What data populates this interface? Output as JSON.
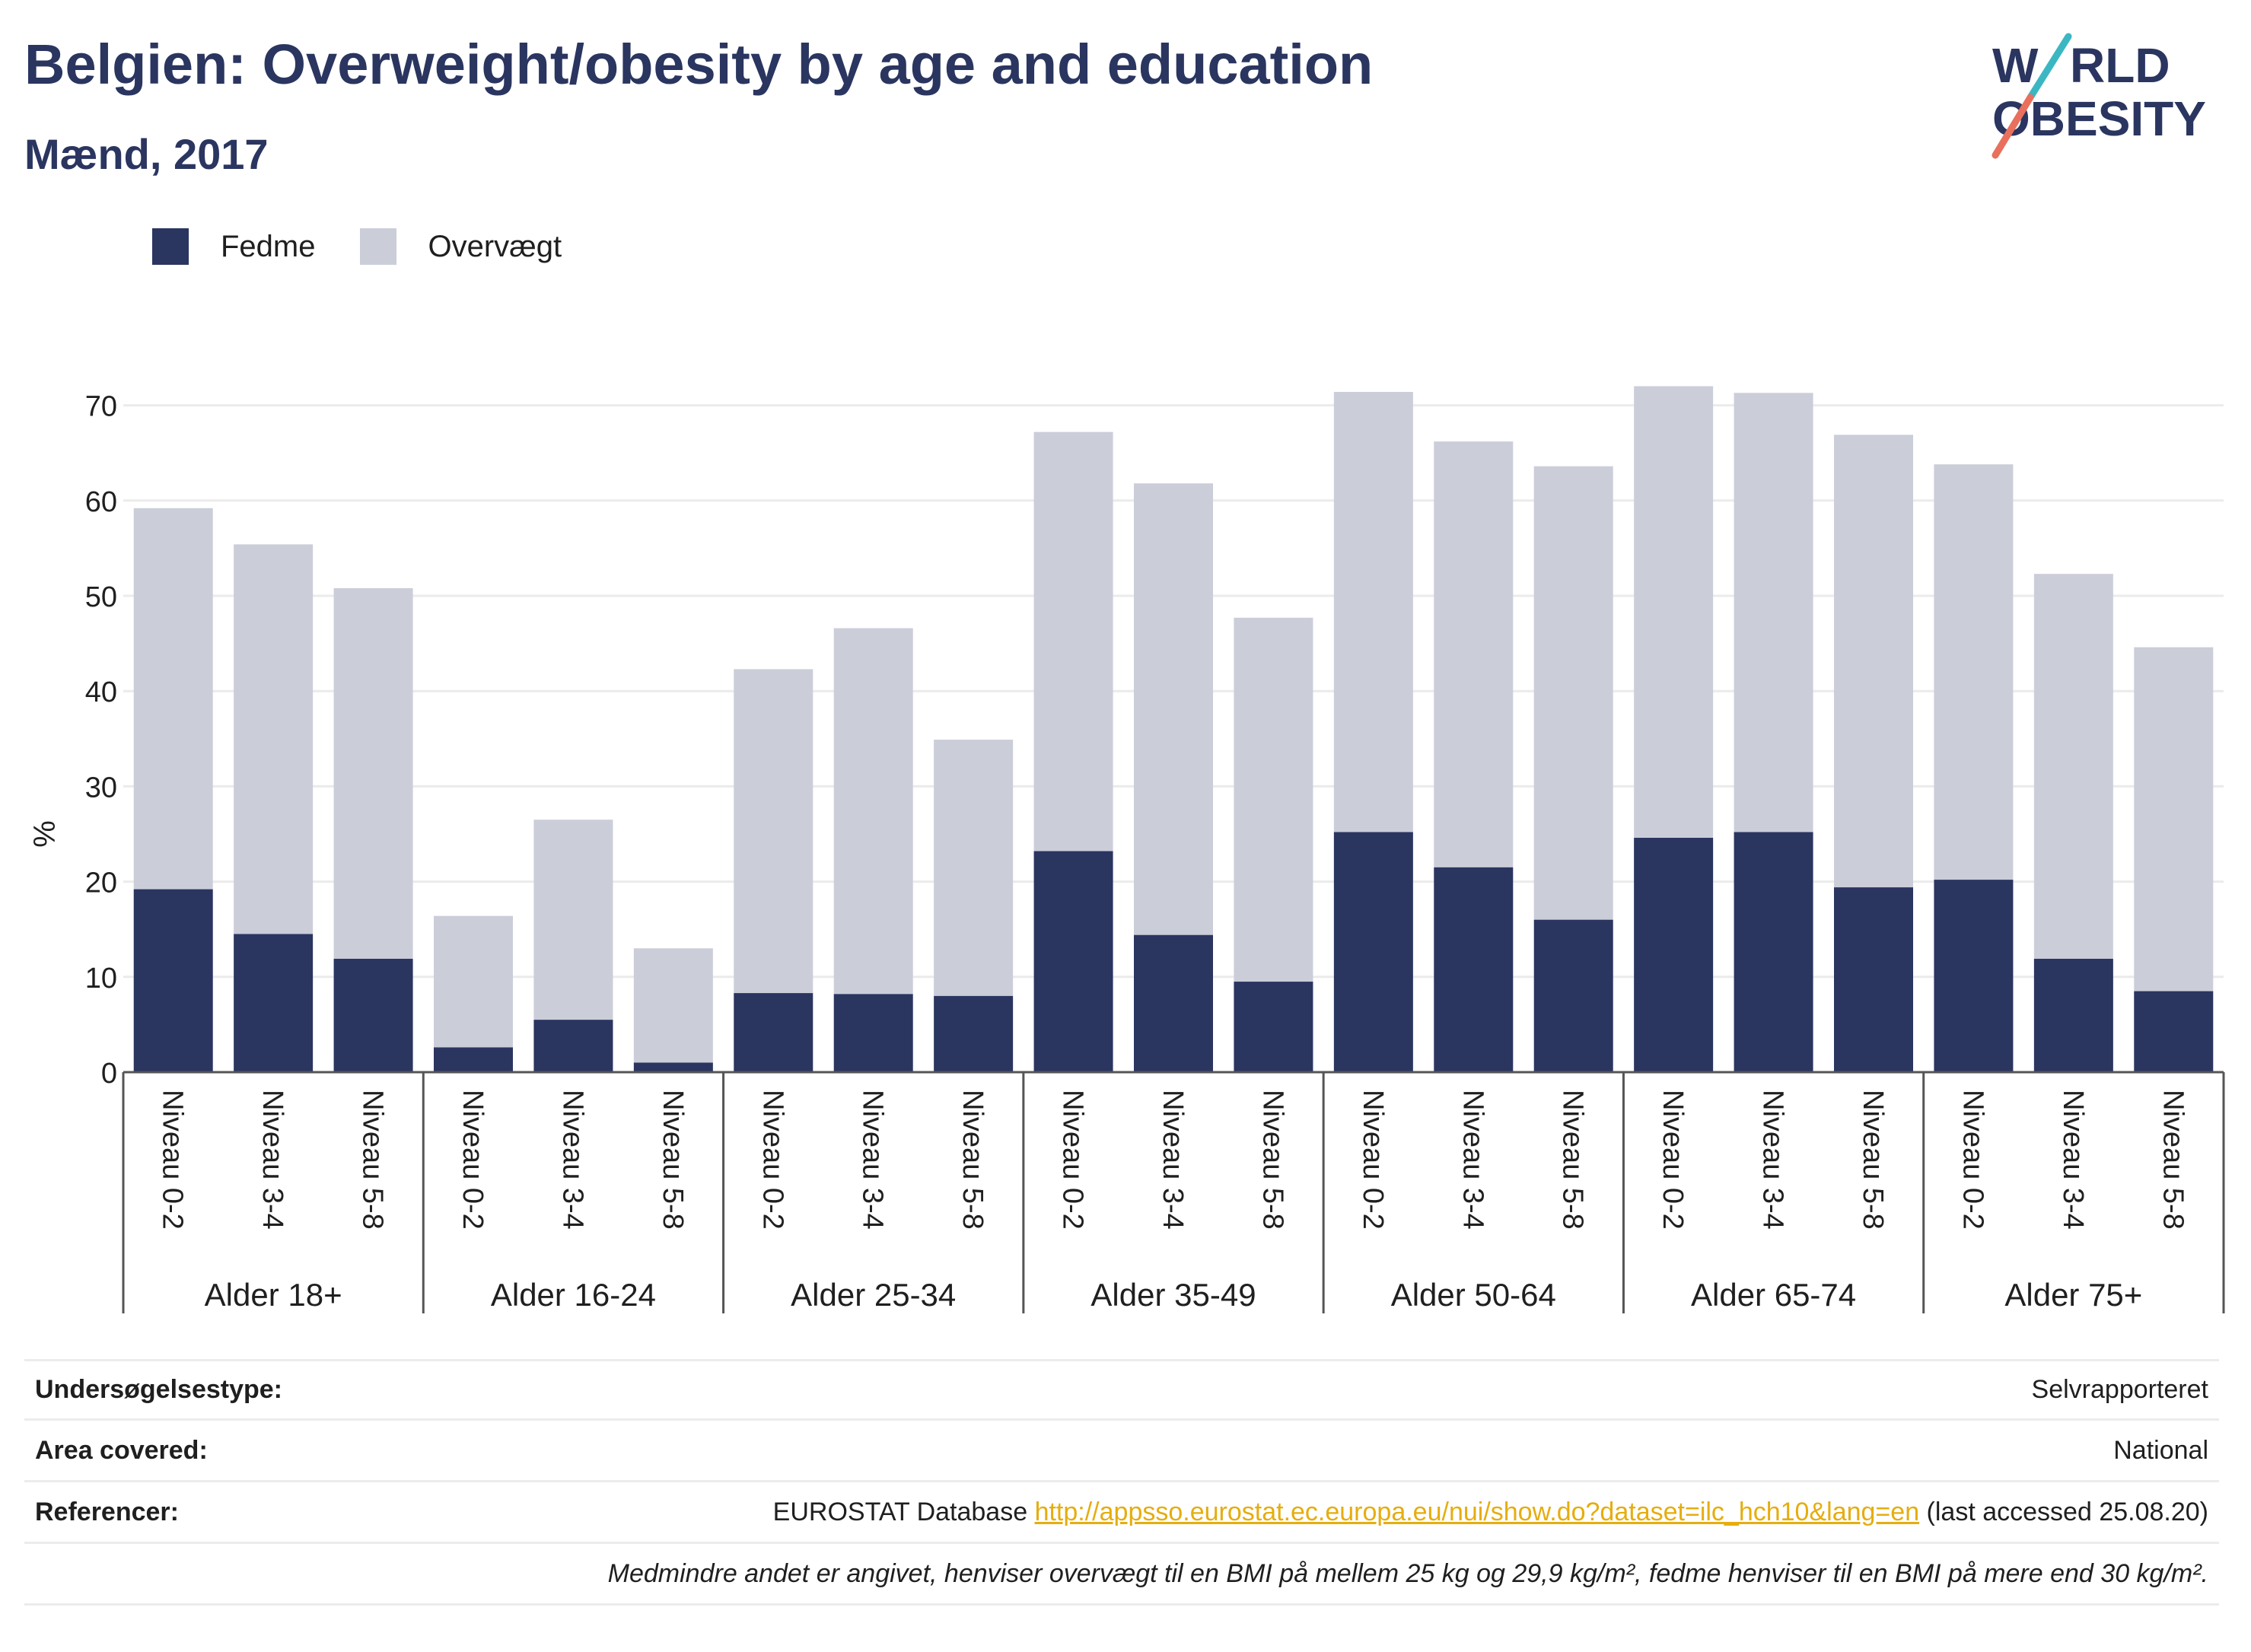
{
  "title": "Belgien: Overweight/obesity by age and education",
  "subtitle": "Mænd, 2017",
  "logo": {
    "line1": "W",
    "line1b": "RLD",
    "line2": "OBESITY"
  },
  "colors": {
    "fedme": "#2a3560",
    "overvaegt": "#cbcdd9",
    "accent_teal": "#3bb7c3",
    "accent_red": "#e8705d",
    "link": "#e5ad0f"
  },
  "chart_data": {
    "type": "bar",
    "stacked": true,
    "ylabel": "%",
    "ylim": [
      0,
      75
    ],
    "yticks": [
      0,
      10,
      20,
      30,
      40,
      50,
      60,
      70
    ],
    "grid": true,
    "legend_position": "top-left",
    "groups": [
      "Alder 18+",
      "Alder 16-24",
      "Alder 25-34",
      "Alder 35-49",
      "Alder 50-64",
      "Alder 65-74",
      "Alder 75+"
    ],
    "levels": [
      "Niveau 0-2",
      "Niveau 3-4",
      "Niveau 5-8"
    ],
    "series": [
      {
        "name": "Fedme",
        "color": "#2a3560",
        "values": [
          19.2,
          14.5,
          11.9,
          2.6,
          5.5,
          1.0,
          8.3,
          8.2,
          8.0,
          23.2,
          14.4,
          9.5,
          25.2,
          21.5,
          16.0,
          24.6,
          25.2,
          19.4,
          20.2,
          11.9,
          8.5
        ]
      },
      {
        "name": "Overvægt",
        "color": "#cbcdd9",
        "values": [
          40.0,
          40.9,
          38.9,
          13.8,
          21.0,
          12.0,
          34.0,
          38.4,
          26.9,
          44.0,
          47.4,
          38.2,
          46.2,
          44.7,
          47.6,
          47.4,
          46.1,
          47.5,
          43.6,
          40.4,
          36.1
        ]
      }
    ]
  },
  "info": {
    "rows": [
      {
        "label": "Undersøgelsestype:",
        "value": "Selvrapporteret"
      },
      {
        "label": "Area covered:",
        "value": "National"
      }
    ],
    "ref_label": "Referencer:",
    "ref_prefix": "EUROSTAT Database ",
    "ref_link": "http://appsso.eurostat.ec.europa.eu/nui/show.do?dataset=ilc_hch10&lang=en",
    "ref_suffix": " (last accessed 25.08.20)",
    "note": "Medmindre andet er angivet, henviser overvægt til en BMI på mellem 25 kg og 29,9 kg/m², fedme henviser til en BMI på mere end 30 kg/m²."
  }
}
